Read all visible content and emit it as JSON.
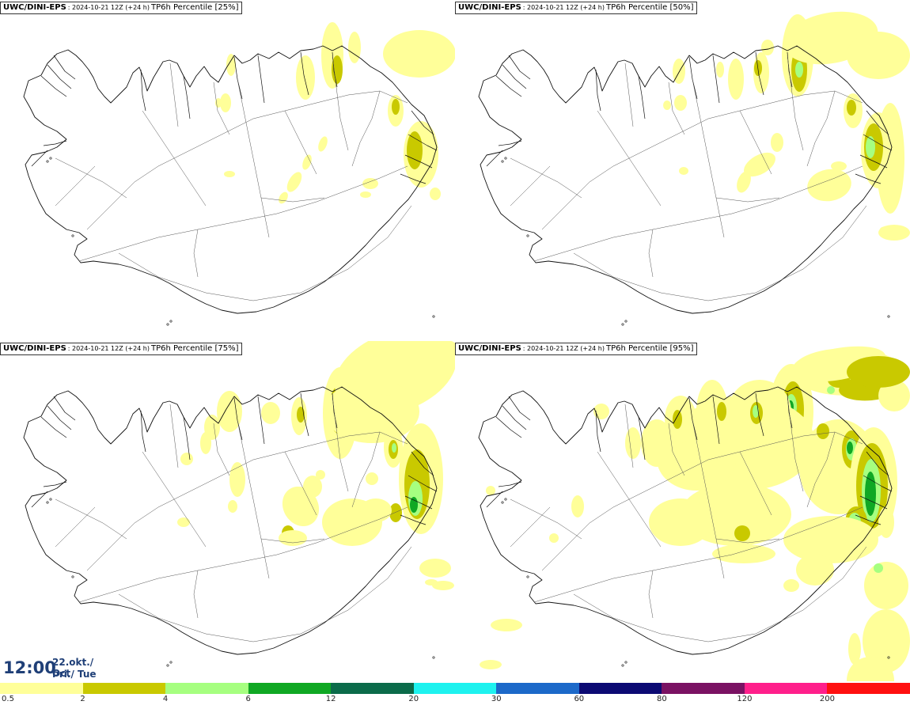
{
  "panels": [
    {
      "source": "UWC/DINI-EPS",
      "run": ": 2024-10-21 12Z (+24 h)",
      "title": "TP6h Percentile [25%]"
    },
    {
      "source": "UWC/DINI-EPS",
      "run": ": 2024-10-21 12Z (+24 h)",
      "title": "TP6h Percentile [50%]"
    },
    {
      "source": "UWC/DINI-EPS",
      "run": ": 2024-10-21 12Z (+24 h)",
      "title": "TP6h Percentile [75%]"
    },
    {
      "source": "UWC/DINI-EPS",
      "run": ": 2024-10-21 12Z (+24 h)",
      "title": "TP6h Percentile [95%]"
    }
  ],
  "valid_time": {
    "time": "12:00",
    "date": "22.okt./ Oct",
    "weekday": "Þri./ Tue"
  },
  "legend": {
    "labels": [
      "0.5",
      "2",
      "4",
      "6",
      "12",
      "20",
      "30",
      "60",
      "80",
      "120",
      "200"
    ],
    "colors": [
      "#ffff99",
      "#c9c900",
      "#a6ff80",
      "#10a824",
      "#0b6b4a",
      "#1ef2ef",
      "#1c69c9",
      "#0c0a73",
      "#7a1263",
      "#ff1f8b",
      "#ff1010"
    ]
  },
  "map": {
    "coastline_color": "#111111",
    "roads_color": "#555555"
  }
}
